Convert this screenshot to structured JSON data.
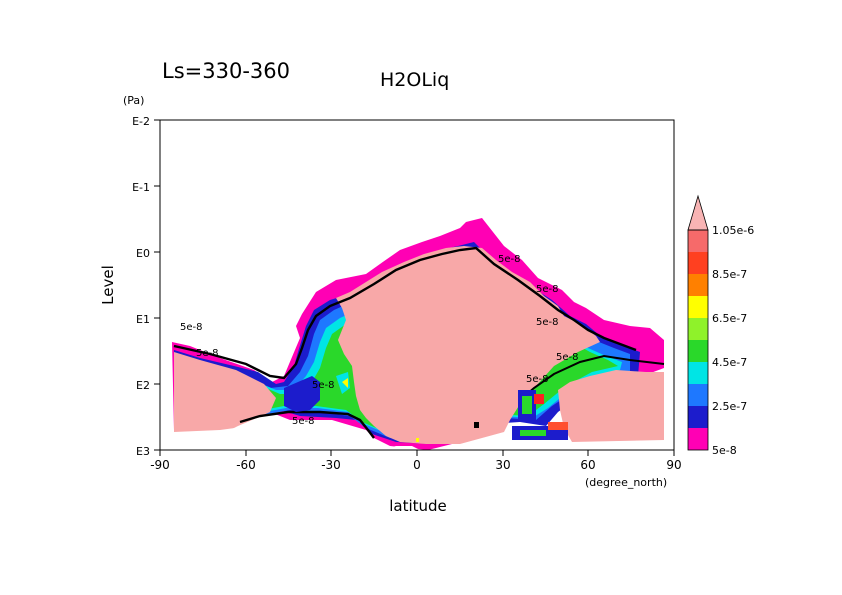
{
  "chart_data": {
    "type": "contour",
    "period_label": "Ls=330-360",
    "title": "H2OLiq",
    "xlabel": "latitude",
    "x_unit": "(degree_north)",
    "ylabel": "Level",
    "y_unit": "(Pa)",
    "xlim": [
      -90,
      90
    ],
    "x_ticks": [
      "-90",
      "-60",
      "-30",
      "0",
      "30",
      "60",
      "90"
    ],
    "y_scale": "log",
    "ylim_log10": [
      3,
      -2
    ],
    "y_ticks": [
      "E-2",
      "E-1",
      "E0",
      "E1",
      "E2",
      "E3"
    ],
    "colorbar": {
      "levels": [
        "5e-8",
        "2.5e-7",
        "4.5e-7",
        "6.5e-7",
        "8.5e-7",
        "1.05e-6"
      ],
      "colors": [
        "#ff00b4",
        "#1c1ccc",
        "#1e78ff",
        "#00e5e5",
        "#2ad82a",
        "#8ff22a",
        "#ffff00",
        "#ff8000",
        "#ff4020",
        "#f66a6a"
      ],
      "extend_arrow_color": "#f8b4b4"
    },
    "contour_labels": [
      "5e-8",
      "5e-8",
      "5e-8",
      "5e-8",
      "5e-8",
      "5e-8",
      "5e-8",
      "5e-8",
      "5e-8"
    ],
    "mask_color": "#f8a8a8"
  }
}
